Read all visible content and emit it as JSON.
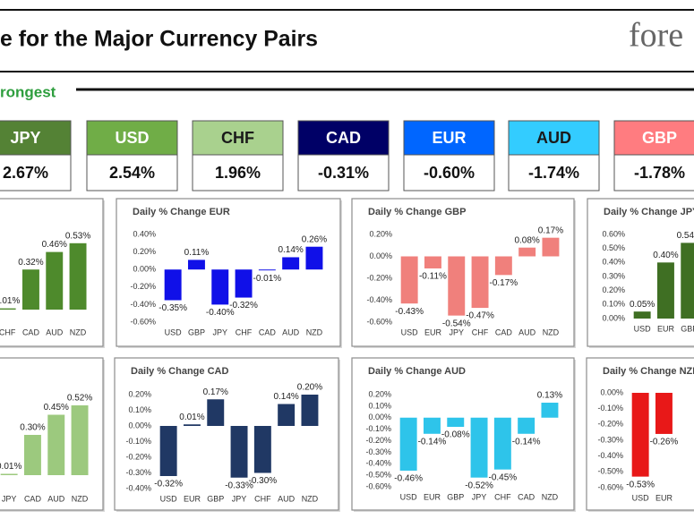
{
  "header": {
    "title": "e for the Major Currency Pairs",
    "logo": "fore",
    "section": "rongest"
  },
  "tiles": [
    {
      "currency": "JPY",
      "change": "2.67%",
      "color": "#548235",
      "text_color": "#ffffff"
    },
    {
      "currency": "USD",
      "change": "2.54%",
      "color": "#70ad47",
      "text_color": "#ffffff"
    },
    {
      "currency": "CHF",
      "change": "1.96%",
      "color": "#a9d18e",
      "text_color": "#1a1a1a"
    },
    {
      "currency": "CAD",
      "change": "-0.31%",
      "color": "#000066",
      "text_color": "#ffffff"
    },
    {
      "currency": "EUR",
      "change": "-0.60%",
      "color": "#0066ff",
      "text_color": "#ffffff"
    },
    {
      "currency": "AUD",
      "change": "-1.74%",
      "color": "#33ccff",
      "text_color": "#1a1a1a"
    },
    {
      "currency": "GBP",
      "change": "-1.78%",
      "color": "#ff7c80",
      "text_color": "#ffffff"
    }
  ],
  "chart_data": [
    {
      "type": "bar",
      "categories": [
        "CHF",
        "CAD",
        "AUD",
        "NZD"
      ],
      "values": [
        0.01,
        0.32,
        0.46,
        0.53
      ],
      "value_labels": [
        "0.01%",
        "0.32%",
        "0.46%",
        "0.53%"
      ],
      "ylim": [
        -0.1,
        0.6
      ],
      "color": "#4e8a2c"
    },
    {
      "type": "bar",
      "title": "Daily % Change EUR",
      "categories": [
        "USD",
        "GBP",
        "JPY",
        "CHF",
        "CAD",
        "AUD",
        "NZD"
      ],
      "values": [
        -0.35,
        0.11,
        -0.4,
        -0.32,
        -0.01,
        0.14,
        0.26
      ],
      "value_labels": [
        "-0.35%",
        "0.11%",
        "-0.40%",
        "-0.32%",
        "-0.01%",
        "0.14%",
        "0.26%"
      ],
      "ylim": [
        -0.6,
        0.4
      ],
      "color": "#1010e8",
      "yticks": [
        {
          "value": 0.4,
          "label": "0.40%"
        },
        {
          "value": 0.2,
          "label": "0.20%"
        },
        {
          "value": 0,
          "label": "0.00%"
        },
        {
          "value": -0.2,
          "label": "-0.20%"
        },
        {
          "value": -0.4,
          "label": "-0.40%"
        },
        {
          "value": -0.6,
          "label": "-0.60%"
        }
      ]
    },
    {
      "type": "bar",
      "title": "Daily % Change GBP",
      "categories": [
        "USD",
        "EUR",
        "JPY",
        "CHF",
        "CAD",
        "AUD",
        "NZD"
      ],
      "values": [
        -0.43,
        -0.11,
        -0.54,
        -0.47,
        -0.17,
        0.08,
        0.17
      ],
      "value_labels": [
        "-0.43%",
        "-0.11%",
        "-0.54%",
        "-0.47%",
        "-0.17%",
        "0.08%",
        "0.17%"
      ],
      "ylim": [
        -0.6,
        0.2
      ],
      "color": "#f0807c",
      "yticks": [
        {
          "value": 0.2,
          "label": "0.20%"
        },
        {
          "value": 0,
          "label": "0.00%"
        },
        {
          "value": -0.2,
          "label": "-0.20%"
        },
        {
          "value": -0.4,
          "label": "-0.40%"
        },
        {
          "value": -0.6,
          "label": "-0.60%"
        }
      ]
    },
    {
      "type": "bar",
      "title": "Daily % Change JPY",
      "categories": [
        "USD",
        "EUR",
        "GBP"
      ],
      "values": [
        0.05,
        0.4,
        0.54
      ],
      "value_labels": [
        "0.05%",
        "0.40%",
        "0.54%"
      ],
      "ylim": [
        0,
        0.6
      ],
      "color": "#3f6f23",
      "yticks": [
        {
          "value": 0.6,
          "label": "0.60%"
        },
        {
          "value": 0.5,
          "label": "0.50%"
        },
        {
          "value": 0.4,
          "label": "0.40%"
        },
        {
          "value": 0.3,
          "label": "0.30%"
        },
        {
          "value": 0.2,
          "label": "0.20%"
        },
        {
          "value": 0.1,
          "label": "0.10%"
        },
        {
          "value": 0,
          "label": "0.00%"
        }
      ]
    },
    {
      "type": "bar",
      "categories": [
        "JPY",
        "CAD",
        "AUD",
        "NZD"
      ],
      "values": [
        0.01,
        0.3,
        0.45,
        0.52
      ],
      "value_labels": [
        "0.01%",
        "0.30%",
        "0.45%",
        "0.52%"
      ],
      "ylim": [
        -0.1,
        0.6
      ],
      "color": "#9cc97e"
    },
    {
      "type": "bar",
      "title": "Daily % Change CAD",
      "categories": [
        "USD",
        "EUR",
        "GBP",
        "JPY",
        "CHF",
        "AUD",
        "NZD"
      ],
      "values": [
        -0.32,
        0.01,
        0.17,
        -0.33,
        -0.3,
        0.14,
        0.2
      ],
      "value_labels": [
        "-0.32%",
        "0.01%",
        "0.17%",
        "-0.33%",
        "-0.30%",
        "0.14%",
        "0.20%"
      ],
      "ylim": [
        -0.4,
        0.2
      ],
      "color": "#203864",
      "yticks": [
        {
          "value": 0.2,
          "label": "0.20%"
        },
        {
          "value": 0.1,
          "label": "0.10%"
        },
        {
          "value": 0,
          "label": "0.00%"
        },
        {
          "value": -0.1,
          "label": "-0.10%"
        },
        {
          "value": -0.2,
          "label": "-0.20%"
        },
        {
          "value": -0.3,
          "label": "-0.30%"
        },
        {
          "value": -0.4,
          "label": "-0.40%"
        }
      ]
    },
    {
      "type": "bar",
      "title": "Daily % Change AUD",
      "categories": [
        "USD",
        "EUR",
        "GBP",
        "JPY",
        "CHF",
        "CAD",
        "NZD"
      ],
      "values": [
        -0.46,
        -0.14,
        -0.08,
        -0.52,
        -0.45,
        -0.14,
        0.13
      ],
      "value_labels": [
        "-0.46%",
        "-0.14%",
        "-0.08%",
        "-0.52%",
        "-0.45%",
        "-0.14%",
        "0.13%"
      ],
      "ylim": [
        -0.6,
        0.2
      ],
      "color": "#2ec4ea",
      "yticks": [
        {
          "value": 0.2,
          "label": "0.20%"
        },
        {
          "value": 0.1,
          "label": "0.10%"
        },
        {
          "value": 0,
          "label": "0.00%"
        },
        {
          "value": -0.1,
          "label": "-0.10%"
        },
        {
          "value": -0.2,
          "label": "-0.20%"
        },
        {
          "value": -0.3,
          "label": "-0.30%"
        },
        {
          "value": -0.4,
          "label": "-0.40%"
        },
        {
          "value": -0.5,
          "label": "-0.50%"
        },
        {
          "value": -0.6,
          "label": "-0.60%"
        }
      ]
    },
    {
      "type": "bar",
      "title": "Daily % Change NZD",
      "categories": [
        "USD",
        "EUR"
      ],
      "values": [
        -0.53,
        -0.26
      ],
      "value_labels": [
        "-0.53%",
        "-0.26%"
      ],
      "ylim": [
        -0.6,
        0
      ],
      "color": "#e81818",
      "yticks": [
        {
          "value": 0,
          "label": "0.00%"
        },
        {
          "value": -0.1,
          "label": "-0.10%"
        },
        {
          "value": -0.2,
          "label": "-0.20%"
        },
        {
          "value": -0.3,
          "label": "-0.30%"
        },
        {
          "value": -0.4,
          "label": "-0.40%"
        },
        {
          "value": -0.5,
          "label": "-0.50%"
        },
        {
          "value": -0.6,
          "label": "-0.60%"
        }
      ]
    }
  ]
}
